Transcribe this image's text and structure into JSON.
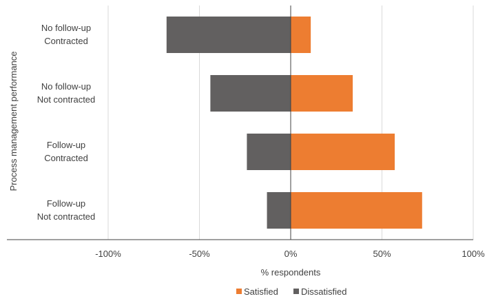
{
  "chart_data": {
    "type": "bar",
    "orientation": "horizontal",
    "stacking": "diverging",
    "categories": [
      [
        "No follow-up",
        "Contracted"
      ],
      [
        "No follow-up",
        "Not contracted"
      ],
      [
        "Follow-up",
        "Contracted"
      ],
      [
        "Follow-up",
        "Not contracted"
      ]
    ],
    "series": [
      {
        "name": "Satisfied",
        "color": "#ED7D31",
        "values": [
          11,
          34,
          57,
          72
        ]
      },
      {
        "name": "Dissatisfied",
        "color": "#626060",
        "values": [
          -68,
          -44,
          -24,
          -13
        ]
      }
    ],
    "xlim": [
      -100,
      100
    ],
    "xticks": [
      -100,
      -50,
      0,
      50,
      100
    ],
    "xtick_labels": [
      "-100%",
      "-50%",
      "0%",
      "50%",
      "100%"
    ],
    "xlabel": "% respondents",
    "ylabel": "Process management performance",
    "grid": "vertical",
    "legend_position": "bottom"
  }
}
